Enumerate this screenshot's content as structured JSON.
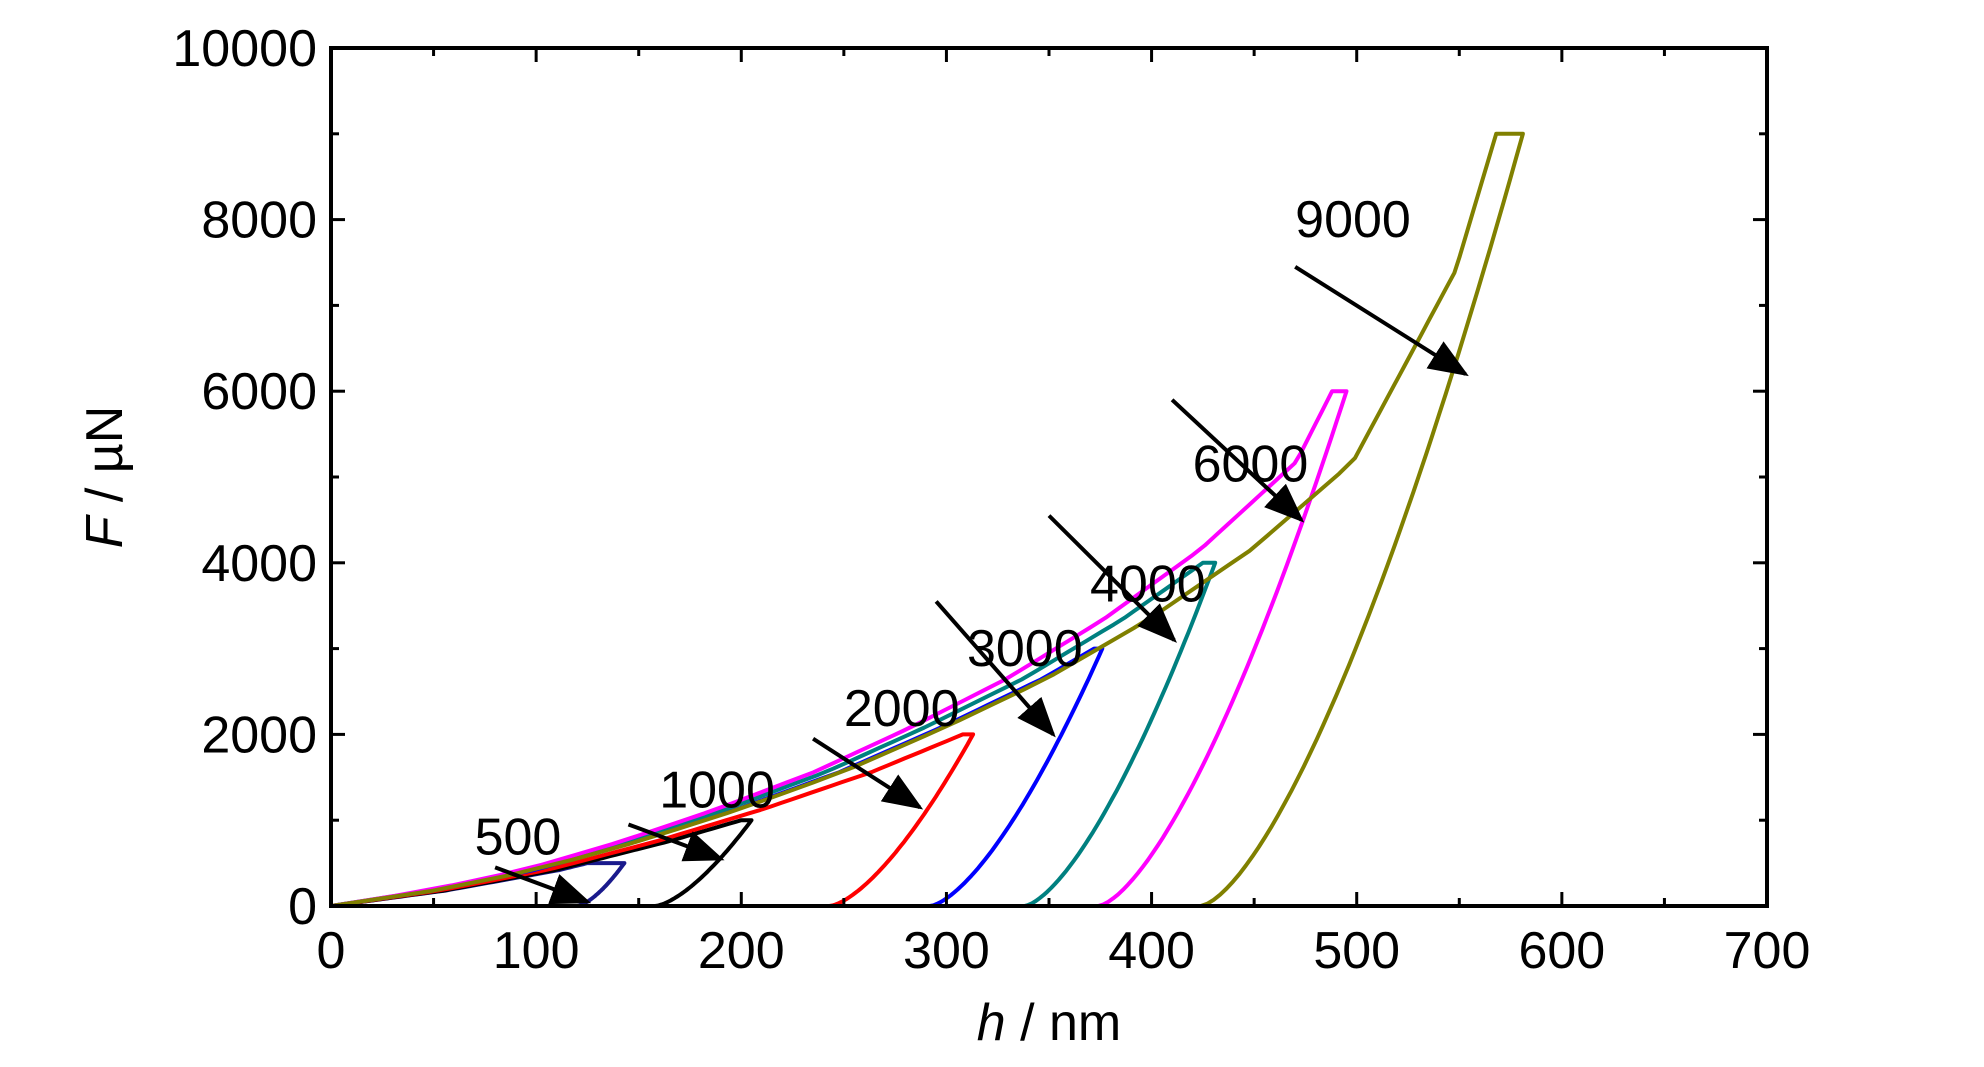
{
  "chart_data": {
    "type": "line",
    "xlabel": {
      "var": "h",
      "unit": " / nm"
    },
    "ylabel": {
      "var": "F",
      "unit": " / µN"
    },
    "xlim": [
      0,
      700
    ],
    "ylim": [
      0,
      10000
    ],
    "x_ticks": [
      0,
      100,
      200,
      300,
      400,
      500,
      600,
      700
    ],
    "y_ticks": [
      0,
      2000,
      4000,
      6000,
      8000,
      10000
    ],
    "grid": false,
    "loading_curve": {
      "h": [
        0,
        50,
        100,
        150,
        200,
        250,
        300,
        350,
        400,
        450,
        500,
        550,
        570
      ],
      "F": [
        0,
        180,
        420,
        750,
        1130,
        1560,
        2080,
        2650,
        3340,
        4150,
        5180,
        7400,
        9000
      ]
    },
    "series": [
      {
        "name": "500",
        "color": "#1a1a8c",
        "peak_F": 500,
        "h_max": 125,
        "h_hold_end": 143,
        "h_final": 120
      },
      {
        "name": "1000",
        "color": "#000000",
        "peak_F": 1000,
        "h_max": 200,
        "h_hold_end": 205,
        "h_final": 158
      },
      {
        "name": "2000",
        "color": "#ff0000",
        "peak_F": 2000,
        "h_max": 308,
        "h_hold_end": 313,
        "h_final": 243
      },
      {
        "name": "3000",
        "color": "#0000ff",
        "peak_F": 3000,
        "h_max": 372,
        "h_hold_end": 376,
        "h_final": 292
      },
      {
        "name": "4000",
        "color": "#008080",
        "peak_F": 4000,
        "h_max": 425,
        "h_hold_end": 431,
        "h_final": 338
      },
      {
        "name": "6000",
        "color": "#ff00ff",
        "peak_F": 6000,
        "h_max": 488,
        "h_hold_end": 495,
        "h_final": 374
      },
      {
        "name": "9000",
        "color": "#808000",
        "peak_F": 9000,
        "h_max": 568,
        "h_hold_end": 581,
        "h_final": 424
      }
    ],
    "annotations": [
      {
        "label": "500",
        "label_at": [
          70,
          600
        ],
        "arrow_from": [
          80,
          450
        ],
        "arrow_to": [
          125,
          50
        ]
      },
      {
        "label": "1000",
        "label_at": [
          160,
          1150
        ],
        "arrow_from": [
          145,
          950
        ],
        "arrow_to": [
          190,
          550
        ]
      },
      {
        "label": "2000",
        "label_at": [
          250,
          2100
        ],
        "arrow_from": [
          235,
          1950
        ],
        "arrow_to": [
          287,
          1150
        ]
      },
      {
        "label": "3000",
        "label_at": [
          310,
          2800
        ],
        "arrow_from": [
          295,
          3550
        ],
        "arrow_to": [
          352,
          2000
        ]
      },
      {
        "label": "4000",
        "label_at": [
          370,
          3550
        ],
        "arrow_from": [
          350,
          4550
        ],
        "arrow_to": [
          411,
          3100
        ]
      },
      {
        "label": "6000",
        "label_at": [
          420,
          4950
        ],
        "arrow_from": [
          410,
          5900
        ],
        "arrow_to": [
          473,
          4500
        ]
      },
      {
        "label": "9000",
        "label_at": [
          470,
          7800
        ],
        "arrow_from": [
          470,
          7450
        ],
        "arrow_to": [
          553,
          6200
        ]
      }
    ]
  }
}
